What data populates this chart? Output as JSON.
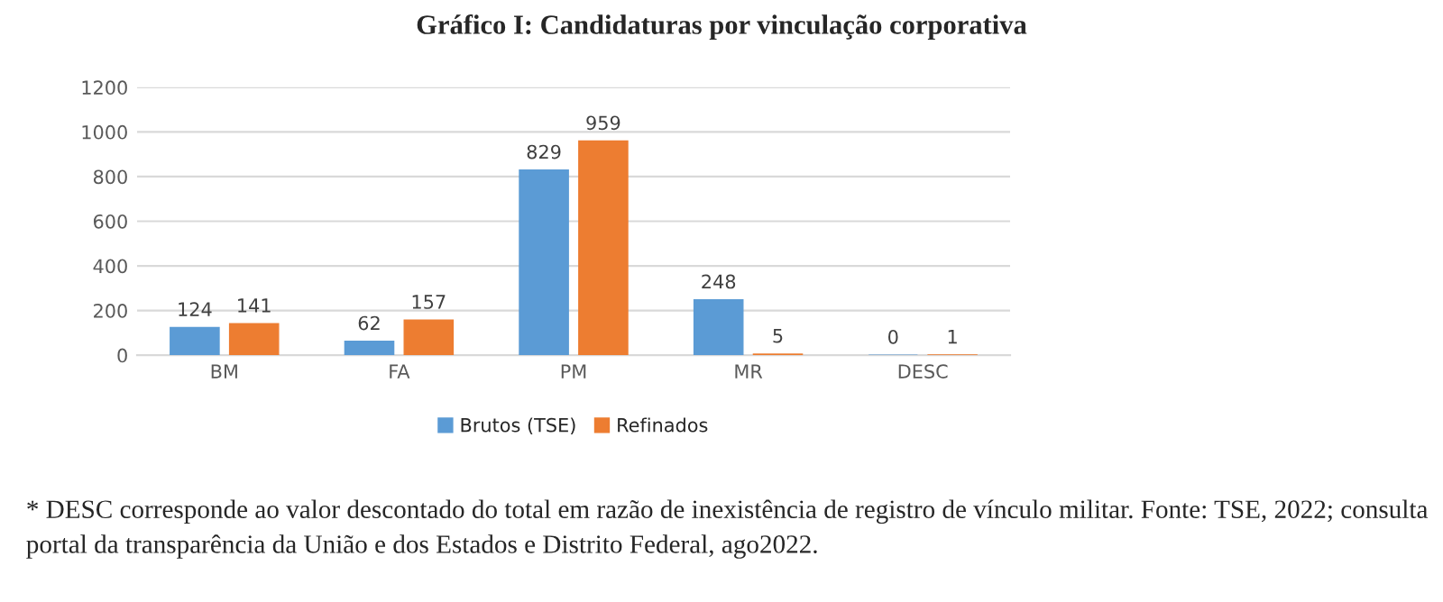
{
  "chart_data": {
    "type": "bar",
    "title": "Gráfico I: Candidaturas por vinculação corporativa",
    "categories": [
      "BM",
      "FA",
      "PM",
      "MR",
      "DESC"
    ],
    "series": [
      {
        "name": "Brutos (TSE)",
        "color": "#5b9bd5",
        "values": [
          124,
          62,
          829,
          248,
          0
        ]
      },
      {
        "name": "Refinados",
        "color": "#ed7d31",
        "values": [
          141,
          157,
          959,
          5,
          1
        ]
      }
    ],
    "ylim": [
      0,
      1200
    ],
    "yticks": [
      0,
      200,
      400,
      600,
      800,
      1000,
      1200
    ],
    "grid": "y",
    "legend": "bottom",
    "data_labels": true,
    "annotations": [
      "* DESC corresponde ao valor descontado do total em razão de inexistência de registro de vínculo militar. Fonte: TSE, 2022; consulta portal da transparência da União e dos Estados e Distrito Federal, ago2022."
    ]
  }
}
